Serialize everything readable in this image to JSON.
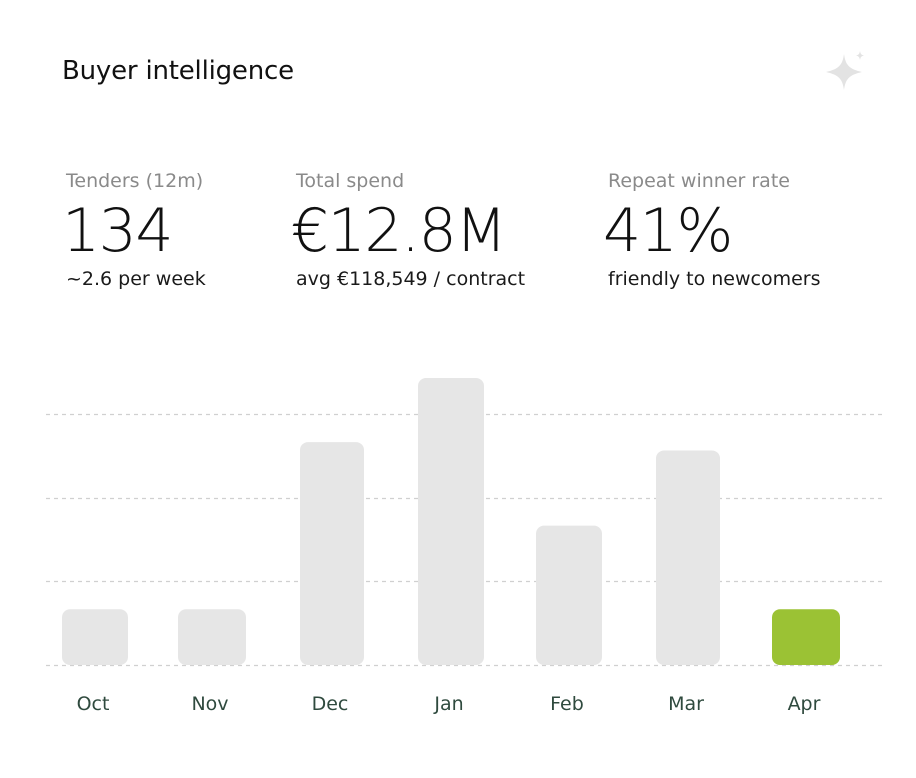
{
  "card": {
    "title": "Buyer intelligence",
    "icon": "sparkle-icon"
  },
  "stats": [
    {
      "label": "Tenders (12m)",
      "value": "134",
      "sub": "~2.6 per week"
    },
    {
      "label": "Total spend",
      "value": "€12.8M",
      "sub": "avg €118,549 / contract"
    },
    {
      "label": "Repeat winner rate",
      "value": "41%",
      "sub": "friendly to newcomers"
    }
  ],
  "colors": {
    "bar_default": "#e6e6e6",
    "bar_highlight": "#9bc234",
    "grid": "#d0d0d0",
    "tick_text": "#2f4a3e",
    "sparkle": "#e3e3e3"
  },
  "chart_data": {
    "type": "bar",
    "categories": [
      "Oct",
      "Nov",
      "Dec",
      "Jan",
      "Feb",
      "Mar",
      "Apr"
    ],
    "values": [
      2,
      2,
      8,
      10.3,
      5,
      7.7,
      2
    ],
    "highlight_index": 6,
    "ylim": [
      0,
      10.3
    ],
    "gridlines": [
      0,
      3,
      6,
      9
    ],
    "grid": true,
    "legend": "none"
  }
}
